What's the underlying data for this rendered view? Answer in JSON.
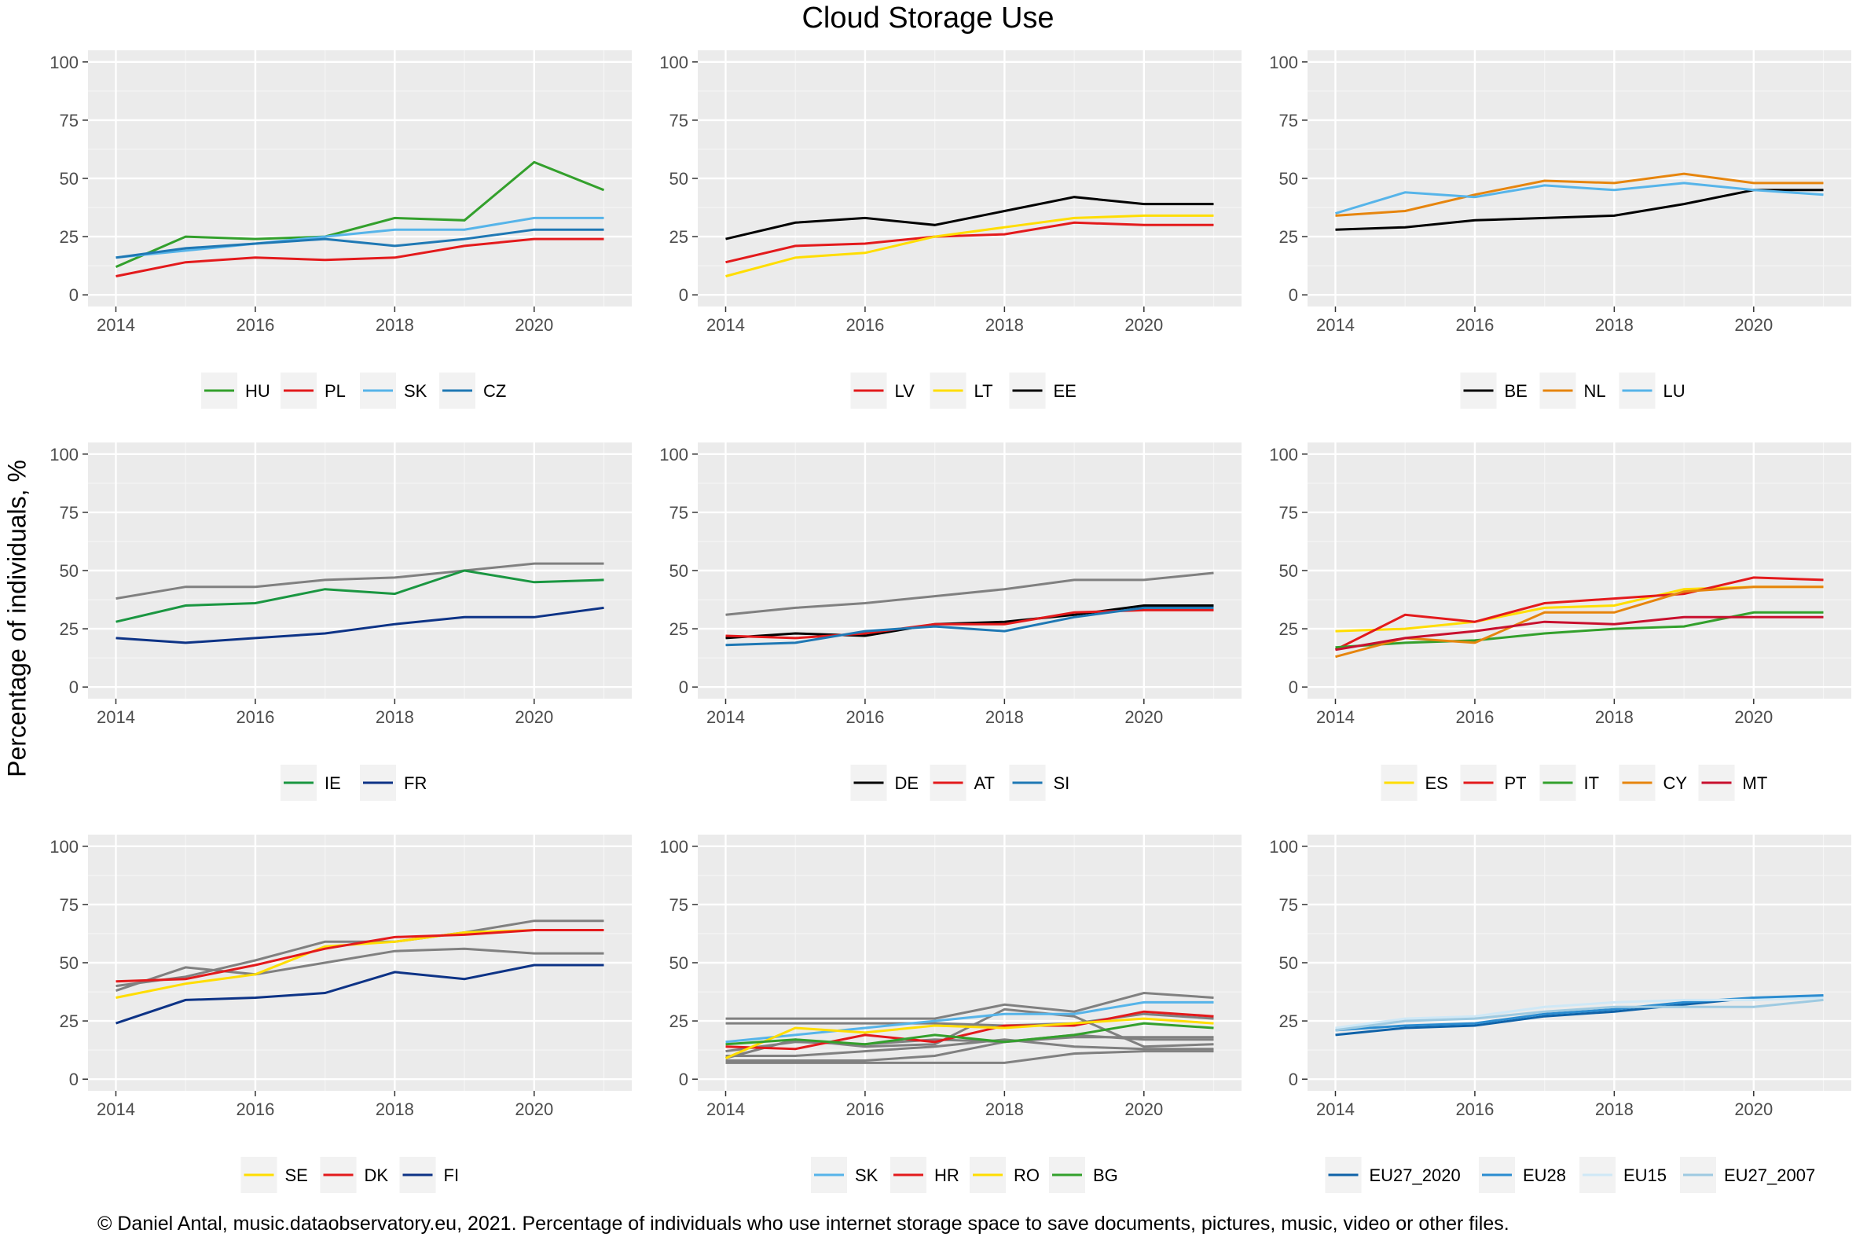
{
  "page": {
    "title": "Cloud Storage Use",
    "ylabel": "Percentage of individuals, %",
    "caption": "© Daniel Antal, music.dataobservatory.eu, 2021. Percentage of individuals who use internet storage space to save documents, pictures, music, video or other files."
  },
  "chart_data": [
    {
      "type": "line",
      "x": [
        2014,
        2015,
        2016,
        2017,
        2018,
        2019,
        2020,
        2021
      ],
      "xticks": [
        2014,
        2016,
        2018,
        2020
      ],
      "yticks": [
        0,
        25,
        50,
        75,
        100
      ],
      "xlim": [
        2013.6,
        2021.4
      ],
      "ylim": [
        -5,
        105
      ],
      "grid": true,
      "legend": "bottom",
      "series": [
        {
          "name": "HU",
          "color": "#33a02c",
          "values": [
            12,
            25,
            24,
            25,
            33,
            32,
            57,
            45
          ]
        },
        {
          "name": "PL",
          "color": "#e31a1c",
          "values": [
            8,
            14,
            16,
            15,
            16,
            21,
            24,
            24
          ]
        },
        {
          "name": "SK",
          "color": "#56b4e9",
          "values": [
            16,
            19,
            22,
            25,
            28,
            28,
            33,
            33
          ]
        },
        {
          "name": "CZ",
          "color": "#1f78b4",
          "values": [
            16,
            20,
            22,
            24,
            21,
            24,
            28,
            28
          ]
        }
      ]
    },
    {
      "type": "line",
      "x": [
        2014,
        2015,
        2016,
        2017,
        2018,
        2019,
        2020,
        2021
      ],
      "xticks": [
        2014,
        2016,
        2018,
        2020
      ],
      "yticks": [
        0,
        25,
        50,
        75,
        100
      ],
      "xlim": [
        2013.6,
        2021.4
      ],
      "ylim": [
        -5,
        105
      ],
      "grid": true,
      "legend": "bottom",
      "series": [
        {
          "name": "LV",
          "color": "#e31a1c",
          "values": [
            14,
            21,
            22,
            25,
            26,
            31,
            30,
            30
          ]
        },
        {
          "name": "LT",
          "color": "#ffdd00",
          "values": [
            8,
            16,
            18,
            25,
            29,
            33,
            34,
            34
          ]
        },
        {
          "name": "EE",
          "color": "#000000",
          "values": [
            24,
            31,
            33,
            30,
            36,
            42,
            39,
            39
          ]
        }
      ]
    },
    {
      "type": "line",
      "x": [
        2014,
        2015,
        2016,
        2017,
        2018,
        2019,
        2020,
        2021
      ],
      "xticks": [
        2014,
        2016,
        2018,
        2020
      ],
      "yticks": [
        0,
        25,
        50,
        75,
        100
      ],
      "xlim": [
        2013.6,
        2021.4
      ],
      "ylim": [
        -5,
        105
      ],
      "grid": true,
      "legend": "bottom",
      "series": [
        {
          "name": "BE",
          "color": "#000000",
          "values": [
            28,
            29,
            32,
            33,
            34,
            39,
            45,
            45
          ]
        },
        {
          "name": "NL",
          "color": "#e6850e",
          "values": [
            34,
            36,
            43,
            49,
            48,
            52,
            48,
            48
          ]
        },
        {
          "name": "LU",
          "color": "#56b4e9",
          "values": [
            35,
            44,
            42,
            47,
            45,
            48,
            45,
            43
          ]
        }
      ]
    },
    {
      "type": "line",
      "x": [
        2014,
        2015,
        2016,
        2017,
        2018,
        2019,
        2020,
        2021
      ],
      "xticks": [
        2014,
        2016,
        2018,
        2020
      ],
      "yticks": [
        0,
        25,
        50,
        75,
        100
      ],
      "xlim": [
        2013.6,
        2021.4
      ],
      "ylim": [
        -5,
        105
      ],
      "grid": true,
      "legend": "bottom",
      "background_series": [
        {
          "color": "#808080",
          "values": [
            38,
            43,
            43,
            46,
            47,
            50,
            53,
            53
          ]
        }
      ],
      "series": [
        {
          "name": "IE",
          "color": "#1a9641",
          "values": [
            28,
            35,
            36,
            42,
            40,
            50,
            45,
            46
          ]
        },
        {
          "name": "FR",
          "color": "#0d3386",
          "values": [
            21,
            19,
            21,
            23,
            27,
            30,
            30,
            34
          ]
        }
      ]
    },
    {
      "type": "line",
      "x": [
        2014,
        2015,
        2016,
        2017,
        2018,
        2019,
        2020,
        2021
      ],
      "xticks": [
        2014,
        2016,
        2018,
        2020
      ],
      "yticks": [
        0,
        25,
        50,
        75,
        100
      ],
      "xlim": [
        2013.6,
        2021.4
      ],
      "ylim": [
        -5,
        105
      ],
      "grid": true,
      "legend": "bottom",
      "background_series": [
        {
          "color": "#808080",
          "values": [
            31,
            34,
            36,
            39,
            42,
            46,
            46,
            49
          ]
        }
      ],
      "series": [
        {
          "name": "DE",
          "color": "#000000",
          "values": [
            21,
            23,
            22,
            27,
            28,
            31,
            35,
            35
          ]
        },
        {
          "name": "AT",
          "color": "#e31a1c",
          "values": [
            22,
            21,
            23,
            27,
            27,
            32,
            33,
            33
          ]
        },
        {
          "name": "SI",
          "color": "#1f78b4",
          "values": [
            18,
            19,
            24,
            26,
            24,
            30,
            34,
            34
          ]
        }
      ]
    },
    {
      "type": "line",
      "x": [
        2014,
        2015,
        2016,
        2017,
        2018,
        2019,
        2020,
        2021
      ],
      "xticks": [
        2014,
        2016,
        2018,
        2020
      ],
      "yticks": [
        0,
        25,
        50,
        75,
        100
      ],
      "xlim": [
        2013.6,
        2021.4
      ],
      "ylim": [
        -5,
        105
      ],
      "grid": true,
      "legend": "bottom",
      "series": [
        {
          "name": "ES",
          "color": "#ffdd00",
          "values": [
            24,
            25,
            28,
            34,
            35,
            42,
            43,
            43
          ]
        },
        {
          "name": "PT",
          "color": "#e31a1c",
          "values": [
            16,
            31,
            28,
            36,
            38,
            40,
            47,
            46
          ]
        },
        {
          "name": "IT",
          "color": "#33a02c",
          "values": [
            17,
            19,
            20,
            23,
            25,
            26,
            32,
            32
          ]
        },
        {
          "name": "CY",
          "color": "#e6850e",
          "values": [
            13,
            21,
            19,
            32,
            32,
            41,
            43,
            43
          ]
        },
        {
          "name": "MT",
          "color": "#c8102e",
          "values": [
            16,
            21,
            24,
            28,
            27,
            30,
            30,
            30
          ]
        }
      ]
    },
    {
      "type": "line",
      "x": [
        2014,
        2015,
        2016,
        2017,
        2018,
        2019,
        2020,
        2021
      ],
      "xticks": [
        2014,
        2016,
        2018,
        2020
      ],
      "yticks": [
        0,
        25,
        50,
        75,
        100
      ],
      "xlim": [
        2013.6,
        2021.4
      ],
      "ylim": [
        -5,
        105
      ],
      "grid": true,
      "legend": "bottom",
      "background_series": [
        {
          "color": "#808080",
          "values": [
            38,
            48,
            45,
            50,
            55,
            56,
            54,
            54
          ]
        },
        {
          "color": "#808080",
          "values": [
            40,
            44,
            51,
            59,
            59,
            63,
            68,
            68
          ]
        }
      ],
      "series": [
        {
          "name": "SE",
          "color": "#ffdd00",
          "values": [
            35,
            41,
            45,
            57,
            59,
            63,
            64,
            64
          ]
        },
        {
          "name": "DK",
          "color": "#e31a1c",
          "values": [
            42,
            43,
            49,
            56,
            61,
            62,
            64,
            64
          ]
        },
        {
          "name": "FI",
          "color": "#0d3386",
          "values": [
            24,
            34,
            35,
            37,
            46,
            43,
            49,
            49
          ]
        }
      ]
    },
    {
      "type": "line",
      "x": [
        2014,
        2015,
        2016,
        2017,
        2018,
        2019,
        2020,
        2021
      ],
      "xticks": [
        2014,
        2016,
        2018,
        2020
      ],
      "yticks": [
        0,
        25,
        50,
        75,
        100
      ],
      "xlim": [
        2013.6,
        2021.4
      ],
      "ylim": [
        -5,
        105
      ],
      "grid": true,
      "legend": "bottom",
      "background_series": [
        {
          "color": "#808080",
          "values": [
            26,
            26,
            26,
            26,
            32,
            29,
            37,
            35
          ]
        },
        {
          "color": "#808080",
          "values": [
            24,
            24,
            24,
            24,
            23,
            24,
            28,
            26
          ]
        },
        {
          "color": "#808080",
          "values": [
            7,
            7,
            7,
            7,
            7,
            11,
            12,
            12
          ]
        },
        {
          "color": "#808080",
          "values": [
            10,
            10,
            12,
            14,
            17,
            14,
            13,
            13
          ]
        },
        {
          "color": "#808080",
          "values": [
            12,
            16,
            15,
            17,
            16,
            19,
            17,
            17
          ]
        },
        {
          "color": "#808080",
          "values": [
            8,
            8,
            8,
            10,
            16,
            18,
            18,
            18
          ]
        },
        {
          "color": "#808080",
          "values": [
            9,
            17,
            14,
            15,
            30,
            27,
            14,
            15
          ]
        }
      ],
      "series": [
        {
          "name": "SK",
          "color": "#56b4e9",
          "values": [
            16,
            19,
            22,
            25,
            28,
            28,
            33,
            33
          ]
        },
        {
          "name": "HR",
          "color": "#e31a1c",
          "values": [
            14,
            13,
            19,
            16,
            23,
            23,
            29,
            27
          ]
        },
        {
          "name": "RO",
          "color": "#ffdd00",
          "values": [
            9,
            22,
            20,
            23,
            22,
            24,
            26,
            24
          ]
        },
        {
          "name": "BG",
          "color": "#33a02c",
          "values": [
            15,
            17,
            15,
            19,
            16,
            19,
            24,
            22
          ]
        }
      ]
    },
    {
      "type": "line",
      "x": [
        2014,
        2015,
        2016,
        2017,
        2018,
        2019,
        2020,
        2021
      ],
      "xticks": [
        2014,
        2016,
        2018,
        2020
      ],
      "yticks": [
        0,
        25,
        50,
        75,
        100
      ],
      "xlim": [
        2013.6,
        2021.4
      ],
      "ylim": [
        -5,
        105
      ],
      "grid": true,
      "legend": "bottom",
      "series": [
        {
          "name": "EU27_2020",
          "color": "#0f62a8",
          "values": [
            19,
            22,
            23,
            27,
            29,
            32,
            35,
            35
          ]
        },
        {
          "name": "EU28",
          "color": "#2b8cd0",
          "values": [
            21,
            23,
            24,
            28,
            30,
            33,
            35,
            36
          ]
        },
        {
          "name": "EU15",
          "color": "#cfe8f6",
          "values": [
            22,
            26,
            27,
            31,
            33,
            34,
            34,
            35
          ]
        },
        {
          "name": "EU27_2007",
          "color": "#9ecae1",
          "values": [
            21,
            25,
            26,
            29,
            31,
            31,
            31,
            34
          ]
        }
      ]
    }
  ]
}
